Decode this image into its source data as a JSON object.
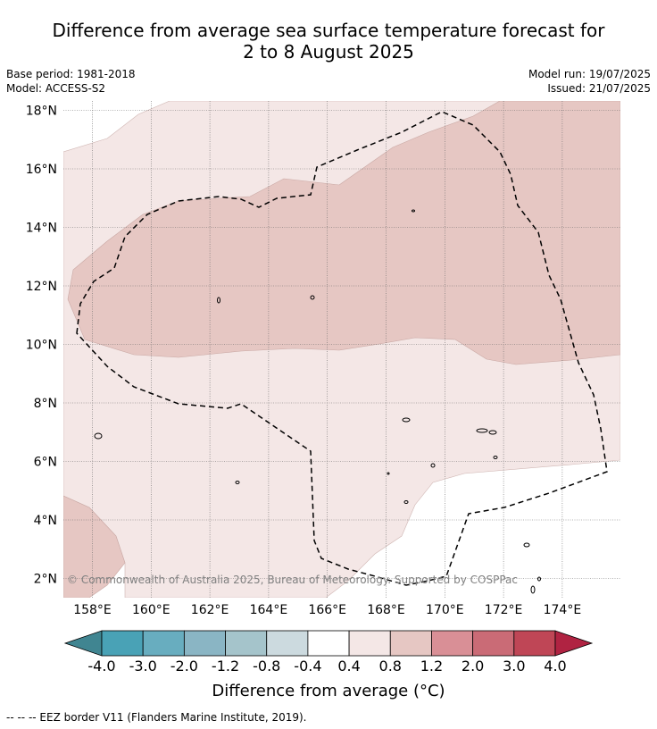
{
  "header": {
    "title_line1": "Difference from average sea surface temperature forecast for",
    "title_line2": "2 to 8 August 2025",
    "base_period": "Base period: 1981-2018",
    "model": "Model: ACCESS-S2",
    "model_run": "Model run: 19/07/2025",
    "issued": "Issued: 21/07/2025"
  },
  "map": {
    "lat_labels": [
      "18°N",
      "16°N",
      "14°N",
      "12°N",
      "10°N",
      "8°N",
      "6°N",
      "4°N",
      "2°N"
    ],
    "lon_labels": [
      "158°E",
      "160°E",
      "162°E",
      "164°E",
      "166°E",
      "168°E",
      "170°E",
      "172°E",
      "174°E"
    ],
    "copyright": "© Commonwealth of Australia 2025, Bureau of Meteorology. Supported by COSPPac",
    "colors": {
      "band_0_4_to_0_8": "#f4e7e6",
      "band_0_8_to_1_2": "#e6c7c3"
    }
  },
  "colorbar": {
    "labels": [
      "-4.0",
      "-3.0",
      "-2.0",
      "-1.2",
      "-0.8",
      "-0.4",
      "0.4",
      "0.8",
      "1.2",
      "2.0",
      "3.0",
      "4.0"
    ],
    "colors": [
      "#408591",
      "#49a2b6",
      "#68adbf",
      "#8ab5c4",
      "#a5c4cb",
      "#ccdadf",
      "#ffffff",
      "#f4e7e6",
      "#e6c7c3",
      "#d98f96",
      "#ca6b76",
      "#bf4656",
      "#b02342"
    ],
    "title": "Difference from average (°C)"
  },
  "footer": {
    "eez_legend": "--  --  -- EEZ border V11 (Flanders Marine Institute, 2019)."
  }
}
